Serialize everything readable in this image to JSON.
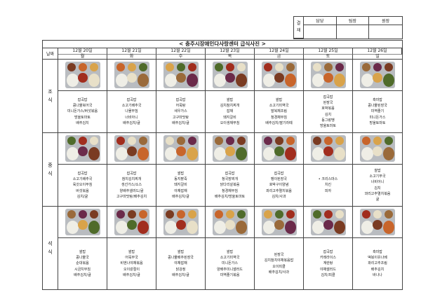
{
  "approval": {
    "label": [
      "결",
      "재"
    ],
    "roles": [
      "담당",
      "팀장",
      "원장"
    ]
  },
  "title": "< 충주시장애인다사랑센터 급식사진 >",
  "date_label": "날짜",
  "days": [
    {
      "date": "12월 20일",
      "weekday": "월"
    },
    {
      "date": "12월 21일",
      "weekday": "화"
    },
    {
      "date": "12월 22일",
      "weekday": "수"
    },
    {
      "date": "12월 23일",
      "weekday": "목"
    },
    {
      "date": "12월 24일",
      "weekday": "금"
    },
    {
      "date": "12월 25일",
      "weekday": "토"
    },
    {
      "date": "12월 26일",
      "weekday": "일"
    }
  ],
  "meals": [
    {
      "label": [
        "조",
        "식"
      ],
      "menus": [
        [
          "잡곡밥",
          "콩나물북어국",
          "미니돈가스/버섯볶음",
          "방울토마토",
          "배추김치"
        ],
        [
          "잡곡밥",
          "소고기배추국",
          "나물무침",
          "너비아니",
          "배추김치/귤"
        ],
        [
          "잡곡밥",
          "어묵탕",
          "새우가스",
          "고구마맛탕",
          "배추김치/귤"
        ],
        [
          "쌀밥",
          "김치참치찌개",
          "잡채",
          "돼지갈비",
          "오이생채무침"
        ],
        [
          "쌀밥",
          "소고기미역국",
          "말복채조림",
          "청경채무침",
          "배추김치/딸기라떼"
        ],
        [
          "잡곡밥",
          "된장국",
          "호박볶음",
          "김치",
          "동그랑땡",
          "방울토마토"
        ],
        [
          "흑미밥",
          "콩나물된장국",
          "미역줄기",
          "미니돈가스",
          "방울토마토"
        ]
      ]
    },
    {
      "label": [
        "중",
        "식"
      ],
      "menus": [
        [
          "잡곡밥",
          "소고기배추국",
          "육갓오이무침",
          "버섯볶음",
          "김치/귤"
        ],
        [
          "잡곡밥",
          "참치김치찌개",
          "생선가스/소스",
          "양배추샐러드/귤",
          "고구마맛탕/배추김치"
        ],
        [
          "쌀밥",
          "동지팥죽",
          "돼지갈비",
          "야채잡채",
          "배추김치/귤"
        ],
        [
          "잡곡밥",
          "청국장찌개",
          "닭다리살볶음",
          "청경채무침",
          "배추김치/방울토마토"
        ],
        [
          "잡곡밥",
          "팽이된장국",
          "호박구이양념",
          "꽈리고추멸치볶음",
          "김치/사과"
        ],
        [
          "• 크리스마스",
          "치킨",
          "피자"
        ],
        [
          "쌀밥",
          "소고기무국",
          "너비아니",
          "김치",
          "꽈리고추멸치볶음",
          "귤"
        ]
      ]
    },
    {
      "label": [
        "석",
        "식"
      ],
      "menus": [
        [
          "쌀밥",
          "콩나물국",
          "순대볶음",
          "시금치무침",
          "배추김치/귤"
        ],
        [
          "쌀밥",
          "어묵무국",
          "비엔나야채볶음",
          "오이겉절이",
          "배추김치/귤"
        ],
        [
          "쌀밥",
          "콩나물배추된장국",
          "야채잡채",
          "닭강정",
          "배추김치/귤"
        ],
        [
          "쌀밥",
          "소고기미역국",
          "미니돈가스",
          "양배추미니샐러드",
          "미역줄기볶음"
        ],
        [
          "된장국",
          "김치참치야채볶음밥",
          "오이피클",
          "배추김치/사과"
        ],
        [
          "잡곡밥",
          "카레라이스",
          "계란탕",
          "야채샐러드",
          "김치/피클"
        ],
        [
          "흑미밥",
          "떡볶이유나베",
          "꽈리고추조림",
          "배추김치",
          "바나나"
        ]
      ]
    }
  ]
}
